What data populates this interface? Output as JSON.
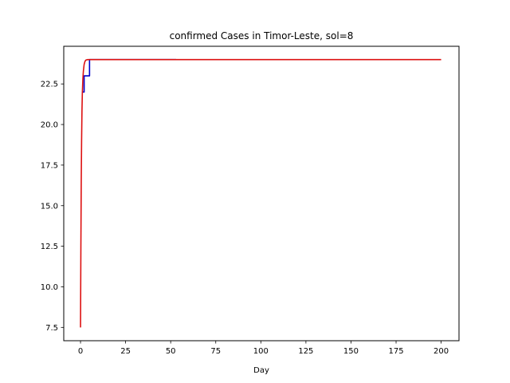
{
  "chart_data": {
    "type": "line",
    "title": "confirmed Cases in Timor-Leste, sol=8",
    "xlabel": "Day",
    "ylabel": "",
    "xlim": [
      -9.3,
      209.9
    ],
    "ylim": [
      6.68,
      24.82
    ],
    "xticks": [
      0,
      25,
      50,
      75,
      100,
      125,
      150,
      175,
      200
    ],
    "xtick_labels": [
      "0",
      "25",
      "50",
      "75",
      "100",
      "125",
      "150",
      "175",
      "200"
    ],
    "yticks": [
      7.5,
      10.0,
      12.5,
      15.0,
      17.5,
      20.0,
      22.5
    ],
    "ytick_labels": [
      "7.5",
      "10.0",
      "12.5",
      "15.0",
      "17.5",
      "20.0",
      "22.5"
    ],
    "grid": false,
    "series": [
      {
        "color": "#0000cc",
        "x": [
          1,
          2,
          3,
          4,
          5,
          10,
          20,
          30,
          40,
          53
        ],
        "y": [
          22,
          23,
          23,
          23,
          24,
          24,
          24,
          24,
          24,
          24
        ]
      },
      {
        "color": "#dd1111",
        "x": [
          0,
          0.2,
          0.4,
          0.6,
          0.8,
          1.0,
          1.3,
          1.6,
          2.0,
          2.5,
          3.0,
          4.0,
          6.0,
          10,
          30,
          60,
          100,
          150,
          200
        ],
        "y": [
          7.5,
          12.5,
          16.5,
          19.0,
          20.8,
          21.9,
          22.8,
          23.3,
          23.7,
          23.9,
          23.97,
          24.0,
          24.0,
          24.0,
          24.0,
          24.0,
          24.0,
          24.0,
          24.0
        ]
      }
    ]
  }
}
